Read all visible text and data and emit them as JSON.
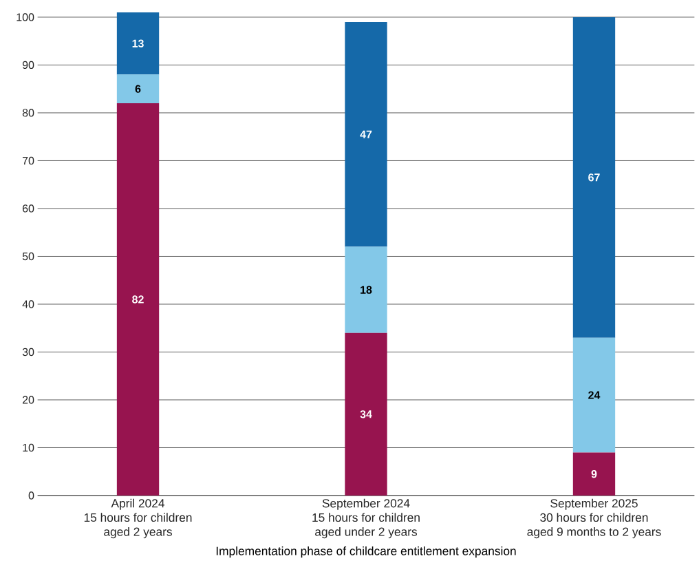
{
  "chart_data": {
    "type": "bar",
    "stacked": true,
    "xlabel": "Implementation phase of childcare entitlement expansion",
    "categories": [
      "April 2024\n15 hours for children\naged 2 years",
      "September 2024\n15 hours for children\naged under 2 years",
      "September 2025\n30 hours for children\naged 9 months to 2 years"
    ],
    "series": [
      {
        "color": "#97144f",
        "values": [
          82,
          34,
          9
        ]
      },
      {
        "color": "#83c8e8",
        "values": [
          6,
          18,
          24
        ]
      },
      {
        "color": "#1569a9",
        "values": [
          13,
          47,
          67
        ]
      }
    ],
    "ylim": [
      0,
      101
    ],
    "yticks": [
      0,
      10,
      20,
      30,
      40,
      50,
      60,
      70,
      80,
      90,
      100
    ],
    "grid": "y",
    "data_labels": true
  }
}
